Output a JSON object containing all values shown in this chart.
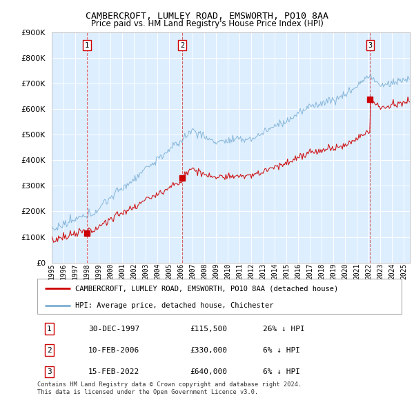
{
  "title": "CAMBERCROFT, LUMLEY ROAD, EMSWORTH, PO10 8AA",
  "subtitle": "Price paid vs. HM Land Registry's House Price Index (HPI)",
  "sale_dates_num": [
    1997.99,
    2006.11,
    2022.12
  ],
  "sale_prices": [
    115500,
    330000,
    640000
  ],
  "sale_labels": [
    "1",
    "2",
    "3"
  ],
  "hpi_color": "#7bafd4",
  "sale_color": "#cc0000",
  "chart_bg": "#ddeeff",
  "background_color": "#ffffff",
  "grid_color": "#ffffff",
  "ylim": [
    0,
    900000
  ],
  "yticks": [
    0,
    100000,
    200000,
    300000,
    400000,
    500000,
    600000,
    700000,
    800000,
    900000
  ],
  "xlim": [
    1995.0,
    2025.5
  ],
  "xtick_years": [
    1995,
    1996,
    1997,
    1998,
    1999,
    2000,
    2001,
    2002,
    2003,
    2004,
    2005,
    2006,
    2007,
    2008,
    2009,
    2010,
    2011,
    2012,
    2013,
    2014,
    2015,
    2016,
    2017,
    2018,
    2019,
    2020,
    2021,
    2022,
    2023,
    2024,
    2025
  ],
  "legend_line1": "CAMBERCROFT, LUMLEY ROAD, EMSWORTH, PO10 8AA (detached house)",
  "legend_line2": "HPI: Average price, detached house, Chichester",
  "table_rows": [
    {
      "num": "1",
      "date": "30-DEC-1997",
      "price": "£115,500",
      "hpi": "26% ↓ HPI"
    },
    {
      "num": "2",
      "date": "10-FEB-2006",
      "price": "£330,000",
      "hpi": "6% ↓ HPI"
    },
    {
      "num": "3",
      "date": "15-FEB-2022",
      "price": "£640,000",
      "hpi": "6% ↓ HPI"
    }
  ],
  "footer": "Contains HM Land Registry data © Crown copyright and database right 2024.\nThis data is licensed under the Open Government Licence v3.0."
}
